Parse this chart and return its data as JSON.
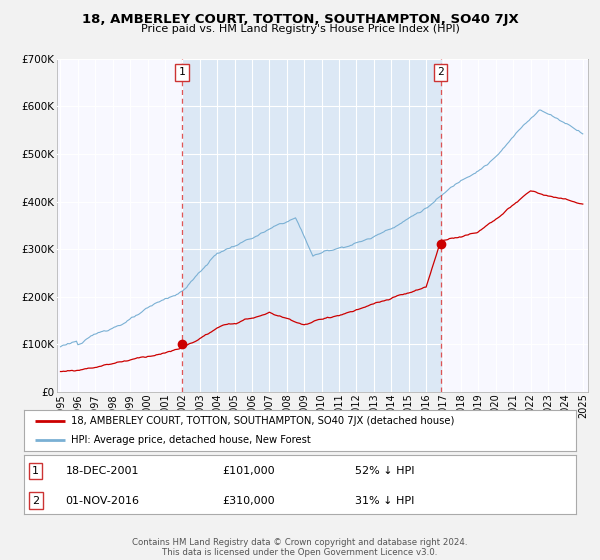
{
  "title": "18, AMBERLEY COURT, TOTTON, SOUTHAMPTON, SO40 7JX",
  "subtitle": "Price paid vs. HM Land Registry's House Price Index (HPI)",
  "legend_line1": "18, AMBERLEY COURT, TOTTON, SOUTHAMPTON, SO40 7JX (detached house)",
  "legend_line2": "HPI: Average price, detached house, New Forest",
  "annotation1_date": "18-DEC-2001",
  "annotation1_price": "£101,000",
  "annotation1_hpi": "52% ↓ HPI",
  "annotation2_date": "01-NOV-2016",
  "annotation2_price": "£310,000",
  "annotation2_hpi": "31% ↓ HPI",
  "footer": "Contains HM Land Registry data © Crown copyright and database right 2024.\nThis data is licensed under the Open Government Licence v3.0.",
  "bg_color": "#f2f2f2",
  "plot_bg_color": "#f8f8ff",
  "grid_color": "#cccccc",
  "red_color": "#cc0000",
  "blue_color": "#7ab0d4",
  "shade_color": "#dce8f5",
  "marker1_year": 2001.97,
  "marker1_value": 101000,
  "marker2_year": 2016.84,
  "marker2_value": 310000,
  "ylim": [
    0,
    700000
  ],
  "xlim_start": 1994.8,
  "xlim_end": 2025.3
}
